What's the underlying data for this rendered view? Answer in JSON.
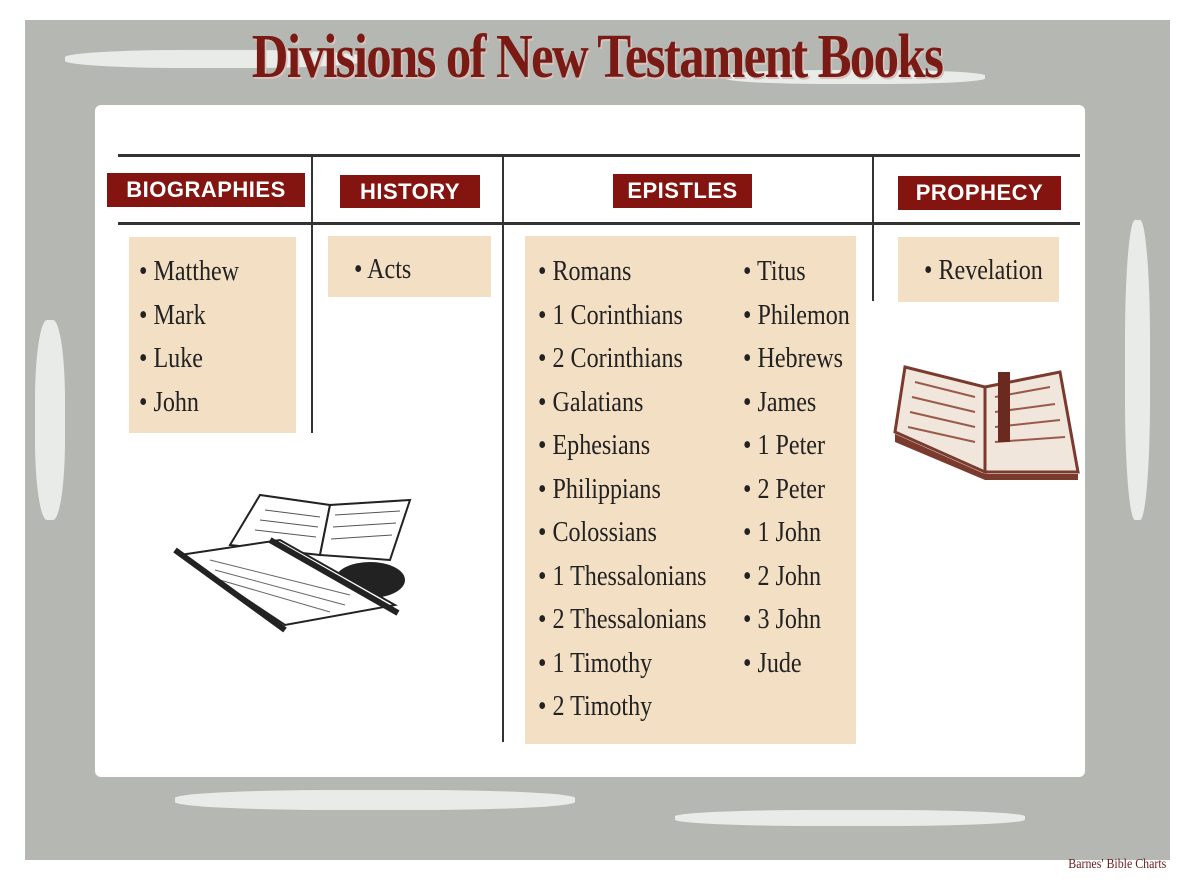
{
  "title": "Divisions of New Testament Books",
  "columns": [
    {
      "header": "BIOGRAPHIES",
      "items": [
        "Matthew",
        "Mark",
        "Luke",
        "John"
      ]
    },
    {
      "header": "HISTORY",
      "items": [
        "Acts"
      ]
    },
    {
      "header": "EPISTLES",
      "items": [
        "Romans",
        "1 Corinthians",
        "2 Corinthians",
        "Galatians",
        "Ephesians",
        "Philippians",
        "Colossians",
        "1 Thessalonians",
        "2 Thessalonians",
        "1 Timothy",
        "2 Timothy",
        "Titus",
        "Philemon",
        "Hebrews",
        "James",
        "1 Peter",
        "2 Peter",
        "1 John",
        "2 John",
        "3 John",
        "Jude"
      ]
    },
    {
      "header": "PROPHECY",
      "items": [
        "Revelation"
      ]
    }
  ],
  "credit": "Barnes' Bible Charts",
  "colors": {
    "header_bg": "#84140f",
    "title": "#7a1a14",
    "box": "#f3dfc4",
    "frame": "#b4b7b2"
  }
}
